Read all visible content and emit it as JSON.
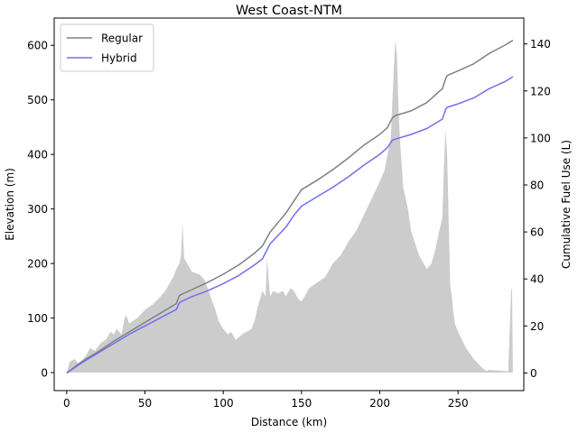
{
  "chart_data": {
    "type": "line",
    "title": "West Coast-NTM",
    "xlabel": "Distance (km)",
    "ylabel_left": "Elevation (m)",
    "ylabel_right": "Cumulative Fuel Use (L)",
    "xlim": [
      -8,
      292
    ],
    "ylim_left": [
      -33,
      650
    ],
    "ylim_right": [
      -7.5,
      151
    ],
    "xticks": [
      0,
      50,
      100,
      150,
      200,
      250
    ],
    "yticks_left": [
      0,
      100,
      200,
      300,
      400,
      500,
      600
    ],
    "yticks_right": [
      0,
      20,
      40,
      60,
      80,
      100,
      120,
      140
    ],
    "grid": false,
    "legend_position": "top-left",
    "colors": {
      "elevation_fill": "#cccccc",
      "regular": "#808080",
      "hybrid": "#7070ee"
    },
    "elevation": {
      "x": [
        0,
        2,
        5,
        8,
        12,
        15,
        18,
        22,
        25,
        28,
        30,
        32,
        35,
        37,
        38,
        40,
        45,
        50,
        55,
        60,
        63,
        65,
        68,
        70,
        72,
        73,
        74,
        75,
        77,
        80,
        85,
        88,
        90,
        93,
        95,
        97,
        100,
        103,
        105,
        108,
        110,
        112,
        115,
        118,
        120,
        122,
        125,
        127,
        128,
        129,
        130,
        132,
        135,
        138,
        140,
        143,
        145,
        148,
        150,
        155,
        160,
        165,
        170,
        175,
        180,
        185,
        190,
        195,
        200,
        203,
        205,
        207,
        209,
        210,
        211,
        212,
        213,
        215,
        218,
        220,
        225,
        230,
        233,
        235,
        238,
        240,
        241,
        242,
        243,
        244,
        245,
        246,
        247,
        248,
        250,
        255,
        260,
        265,
        268,
        270,
        275,
        280,
        282,
        284,
        284.5,
        285
      ],
      "y": [
        0,
        20,
        25,
        15,
        30,
        45,
        40,
        55,
        60,
        75,
        70,
        80,
        70,
        100,
        105,
        90,
        100,
        115,
        125,
        140,
        150,
        160,
        175,
        190,
        200,
        215,
        275,
        210,
        200,
        185,
        180,
        170,
        155,
        130,
        115,
        95,
        80,
        70,
        75,
        60,
        65,
        70,
        75,
        80,
        95,
        120,
        150,
        140,
        210,
        170,
        140,
        150,
        145,
        150,
        140,
        155,
        150,
        135,
        130,
        155,
        165,
        175,
        200,
        215,
        240,
        260,
        290,
        320,
        350,
        370,
        400,
        430,
        560,
        610,
        580,
        480,
        420,
        340,
        300,
        260,
        215,
        190,
        200,
        220,
        260,
        285,
        380,
        445,
        400,
        280,
        160,
        140,
        110,
        90,
        75,
        45,
        25,
        10,
        3,
        5,
        4,
        3,
        2,
        155,
        150,
        0
      ]
    },
    "series": [
      {
        "name": "Regular",
        "x": [
          0,
          10,
          20,
          30,
          40,
          50,
          60,
          70,
          72,
          80,
          90,
          100,
          110,
          120,
          125,
          130,
          140,
          145,
          150,
          160,
          170,
          180,
          190,
          200,
          205,
          208,
          210,
          220,
          230,
          240,
          242,
          243,
          250,
          260,
          270,
          280,
          285
        ],
        "y": [
          0,
          5,
          9,
          13.5,
          17.5,
          21.5,
          25.5,
          29.5,
          33,
          35.5,
          38.5,
          42,
          46,
          51,
          54,
          60,
          68,
          73,
          78,
          82,
          86.5,
          91.5,
          97,
          101.5,
          104.5,
          108.5,
          109.5,
          111.5,
          115,
          121,
          125,
          126.5,
          128.5,
          131.5,
          136,
          139.5,
          141.5
        ]
      },
      {
        "name": "Hybrid",
        "x": [
          0,
          10,
          20,
          30,
          40,
          50,
          60,
          70,
          72,
          80,
          90,
          100,
          110,
          120,
          125,
          130,
          140,
          145,
          150,
          160,
          170,
          180,
          190,
          200,
          205,
          208,
          210,
          220,
          230,
          240,
          242,
          243,
          250,
          260,
          270,
          280,
          285
        ],
        "y": [
          0,
          4.5,
          8.5,
          12.5,
          16.5,
          20,
          23.5,
          27,
          30,
          32.5,
          35,
          38,
          41.5,
          46,
          48.5,
          55,
          62,
          67,
          71,
          75,
          79,
          83.5,
          88.5,
          93,
          96,
          99,
          99.5,
          101.5,
          104,
          108,
          112,
          113,
          114.5,
          117,
          121,
          124,
          126
        ]
      }
    ]
  }
}
